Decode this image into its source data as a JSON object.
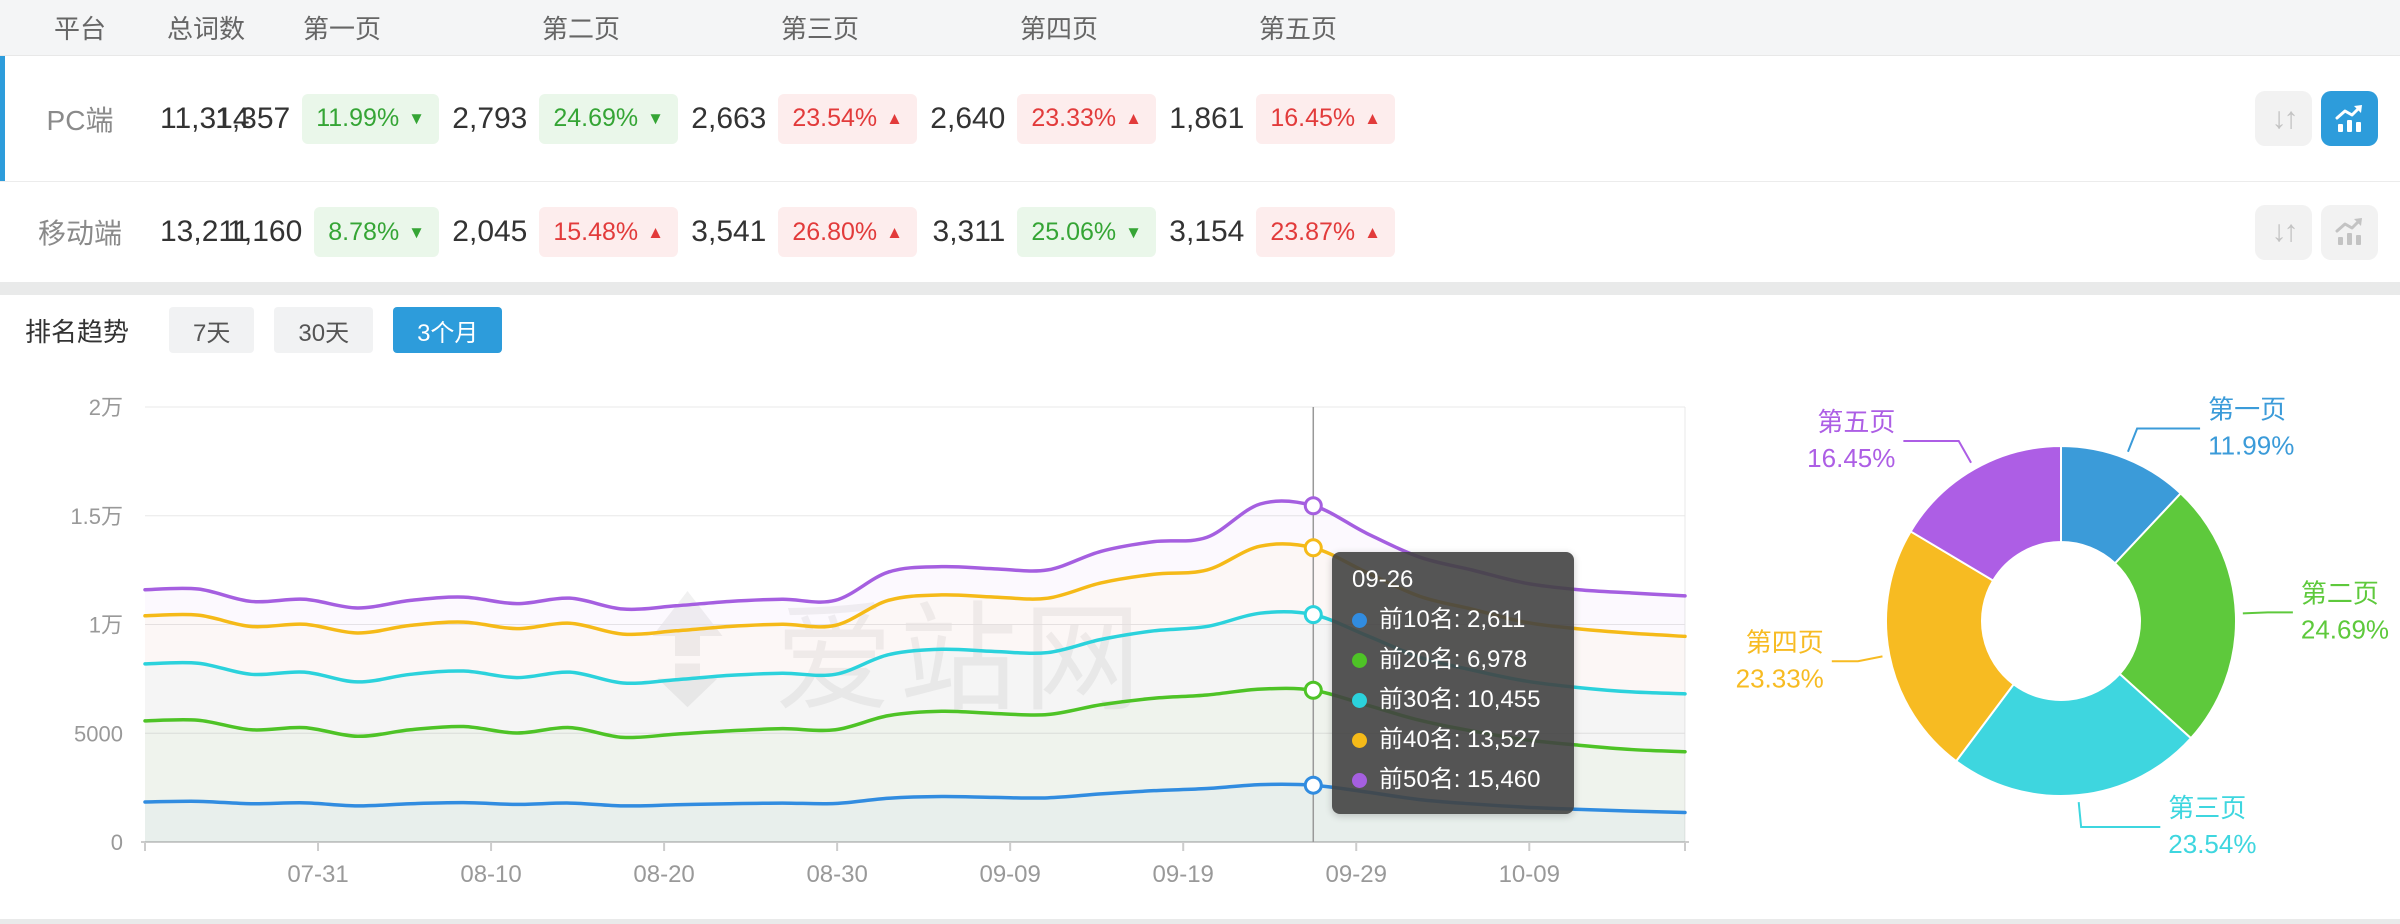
{
  "table": {
    "columns": [
      "平台",
      "总词数",
      "第一页",
      "第二页",
      "第三页",
      "第四页",
      "第五页"
    ],
    "rows": [
      {
        "platform": "PC端",
        "total": "11,314",
        "selected": true,
        "pages": [
          {
            "count": "1,357",
            "pct": "11.99%",
            "dir": "down",
            "tone": "green"
          },
          {
            "count": "2,793",
            "pct": "24.69%",
            "dir": "down",
            "tone": "green"
          },
          {
            "count": "2,663",
            "pct": "23.54%",
            "dir": "up",
            "tone": "red"
          },
          {
            "count": "2,640",
            "pct": "23.33%",
            "dir": "up",
            "tone": "red"
          },
          {
            "count": "1,861",
            "pct": "16.45%",
            "dir": "up",
            "tone": "red"
          }
        ]
      },
      {
        "platform": "移动端",
        "total": "13,211",
        "selected": false,
        "pages": [
          {
            "count": "1,160",
            "pct": "8.78%",
            "dir": "down",
            "tone": "green"
          },
          {
            "count": "2,045",
            "pct": "15.48%",
            "dir": "up",
            "tone": "red"
          },
          {
            "count": "3,541",
            "pct": "26.80%",
            "dir": "up",
            "tone": "red"
          },
          {
            "count": "3,311",
            "pct": "25.06%",
            "dir": "down",
            "tone": "green"
          },
          {
            "count": "3,154",
            "pct": "23.87%",
            "dir": "up",
            "tone": "red"
          }
        ]
      }
    ],
    "arrows": {
      "up": "▲",
      "down": "▼"
    },
    "sort_icon_glyph": "↓↑"
  },
  "trend": {
    "title": "排名趋势",
    "tabs": [
      {
        "label": "7天",
        "active": false
      },
      {
        "label": "30天",
        "active": false
      },
      {
        "label": "3个月",
        "active": true
      }
    ],
    "tooltip": {
      "title": "09-26",
      "values": [
        "2,611",
        "6,978",
        "10,455",
        "13,527",
        "15,460"
      ]
    }
  },
  "watermark": "爱站网",
  "colors": {
    "accent_blue": "#2d9cdb",
    "badge_green": "#35a535",
    "badge_red": "#e23b3b"
  },
  "chart_data": [
    {
      "type": "line",
      "title": "排名趋势 (3个月)",
      "x_day_span": 89,
      "x_ticks": [
        {
          "label": "07-31",
          "day": 10
        },
        {
          "label": "08-10",
          "day": 20
        },
        {
          "label": "08-20",
          "day": 30
        },
        {
          "label": "08-30",
          "day": 40
        },
        {
          "label": "09-09",
          "day": 50
        },
        {
          "label": "09-19",
          "day": 60
        },
        {
          "label": "09-29",
          "day": 70
        },
        {
          "label": "10-09",
          "day": 80
        }
      ],
      "y_ticks": [
        {
          "label": "0",
          "value": 0
        },
        {
          "label": "5000",
          "value": 5000
        },
        {
          "label": "1万",
          "value": 10000
        },
        {
          "label": "1.5万",
          "value": 15000
        },
        {
          "label": "2万",
          "value": 20000
        }
      ],
      "ylim": [
        0,
        20000
      ],
      "highlight_index": 22,
      "highlight_date": "09-26",
      "series": [
        {
          "name": "前10名",
          "color": "#318ce0",
          "values": [
            1840,
            1870,
            1760,
            1800,
            1660,
            1760,
            1810,
            1730,
            1790,
            1660,
            1710,
            1760,
            1790,
            1770,
            2010,
            2090,
            2050,
            2030,
            2210,
            2360,
            2460,
            2640,
            2611,
            2300,
            1950,
            1750,
            1600,
            1500,
            1420,
            1357
          ]
        },
        {
          "name": "前20名",
          "color": "#4ec326",
          "values": [
            5570,
            5600,
            5160,
            5260,
            4860,
            5160,
            5310,
            5010,
            5260,
            4810,
            4960,
            5110,
            5210,
            5160,
            5810,
            6010,
            5910,
            5860,
            6310,
            6610,
            6760,
            7030,
            6978,
            6300,
            5600,
            5100,
            4700,
            4450,
            4250,
            4150
          ]
        },
        {
          "name": "前30名",
          "color": "#2bd2dc",
          "values": [
            8190,
            8220,
            7710,
            7810,
            7360,
            7710,
            7860,
            7560,
            7810,
            7310,
            7460,
            7660,
            7760,
            7710,
            8610,
            8860,
            8760,
            8710,
            9310,
            9710,
            9910,
            10520,
            10455,
            9500,
            8500,
            7900,
            7400,
            7100,
            6900,
            6813
          ]
        },
        {
          "name": "前40名",
          "color": "#f5ba18",
          "values": [
            10400,
            10430,
            9910,
            10010,
            9610,
            9960,
            10110,
            9810,
            10060,
            9560,
            9710,
            9910,
            10010,
            9960,
            11110,
            11360,
            11260,
            11210,
            11910,
            12310,
            12510,
            13600,
            13527,
            12400,
            11300,
            10700,
            10100,
            9800,
            9600,
            9453
          ]
        },
        {
          "name": "前50名",
          "color": "#a55fe0",
          "values": [
            11600,
            11630,
            11060,
            11160,
            10760,
            11110,
            11260,
            10960,
            11210,
            10710,
            10860,
            11060,
            11160,
            11110,
            12410,
            12660,
            12560,
            12510,
            13360,
            13810,
            14010,
            15540,
            15460,
            14200,
            13100,
            12500,
            11900,
            11600,
            11450,
            11314
          ]
        }
      ]
    },
    {
      "type": "pie",
      "labels": [
        "第一页",
        "第二页",
        "第三页",
        "第四页",
        "第五页"
      ],
      "values": [
        11.99,
        24.69,
        23.54,
        23.33,
        16.45
      ],
      "display": [
        "11.99%",
        "24.69%",
        "23.54%",
        "23.33%",
        "16.45%"
      ],
      "colors": [
        "#3b9bd9",
        "#5ec93c",
        "#3ed6df",
        "#f7bb22",
        "#ad5ee5"
      ],
      "inner_radius_ratio": 0.45
    }
  ]
}
